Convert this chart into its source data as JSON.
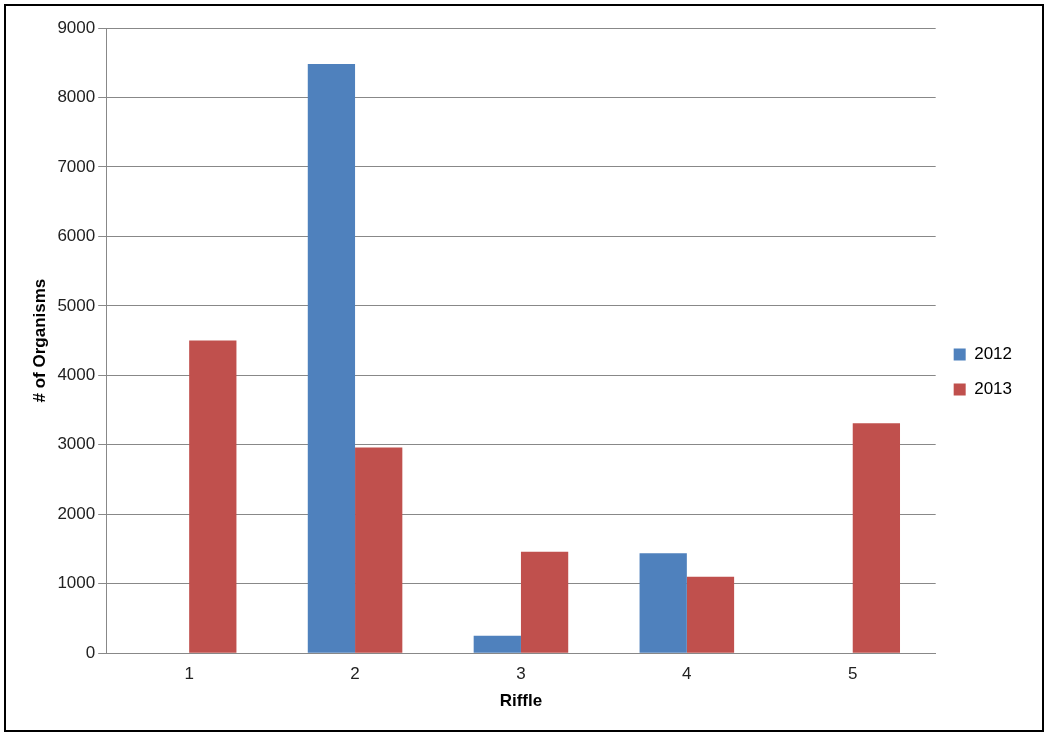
{
  "chart_data": {
    "type": "bar",
    "xlabel": "Riffle",
    "ylabel": "# of Organisms",
    "categories": [
      "1",
      "2",
      "3",
      "4",
      "5"
    ],
    "series": [
      {
        "name": "2012",
        "color": "#4f81bd",
        "values": [
          null,
          8480,
          250,
          1440,
          null
        ]
      },
      {
        "name": "2013",
        "color": "#c0504d",
        "values": [
          4500,
          2960,
          1460,
          1100,
          3310
        ]
      }
    ],
    "ylim": [
      0,
      9000
    ],
    "yticks": [
      0,
      1000,
      2000,
      3000,
      4000,
      5000,
      6000,
      7000,
      8000,
      9000
    ],
    "grid": "y",
    "legend": "right"
  }
}
